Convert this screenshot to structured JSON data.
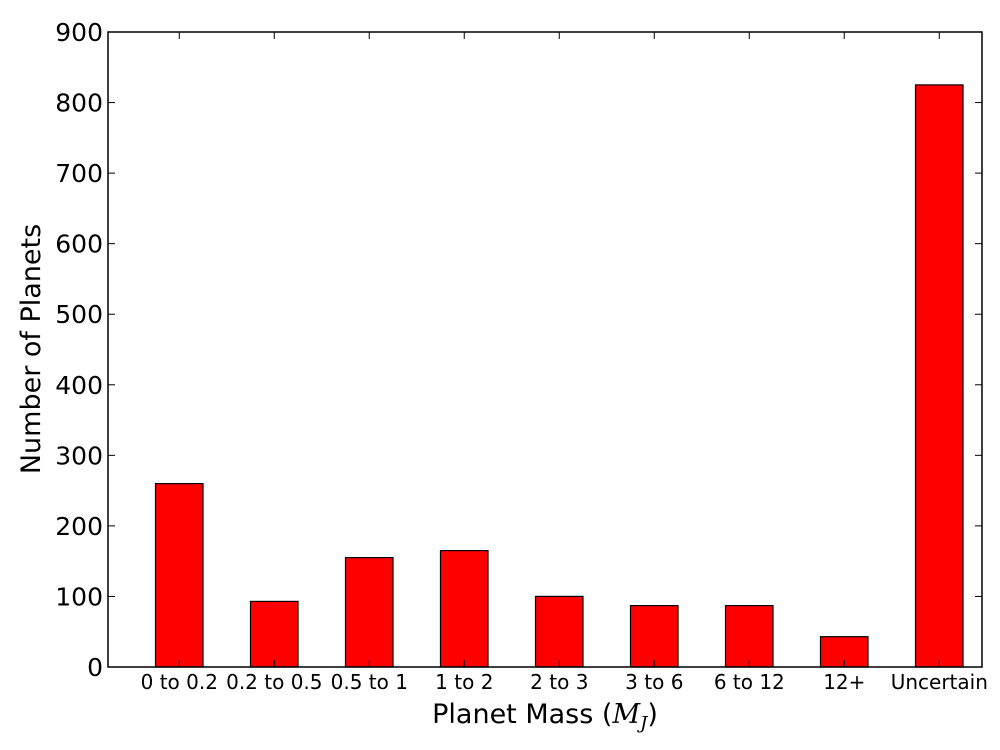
{
  "chart_data": {
    "type": "bar",
    "title": "",
    "categories": [
      "0 to 0.2",
      "0.2 to 0.5",
      "0.5 to 1",
      "1 to 2",
      "2 to 3",
      "3 to 6",
      "6 to 12",
      "12+",
      "Uncertain"
    ],
    "values": [
      260,
      93,
      155,
      165,
      100,
      87,
      87,
      43,
      825
    ],
    "xlabel": "Planet Mass (M_J)",
    "xlabel_prefix": "Planet Mass (",
    "xlabel_math": "M",
    "xlabel_math_sub": "J",
    "xlabel_suffix": ")",
    "ylabel": "Number of Planets",
    "ylim": [
      0,
      900
    ],
    "yticks": [
      "0",
      "100",
      "200",
      "300",
      "400",
      "500",
      "600",
      "700",
      "800",
      "900"
    ],
    "bar_color": "#ff0000",
    "grid": false,
    "legend": "none"
  }
}
